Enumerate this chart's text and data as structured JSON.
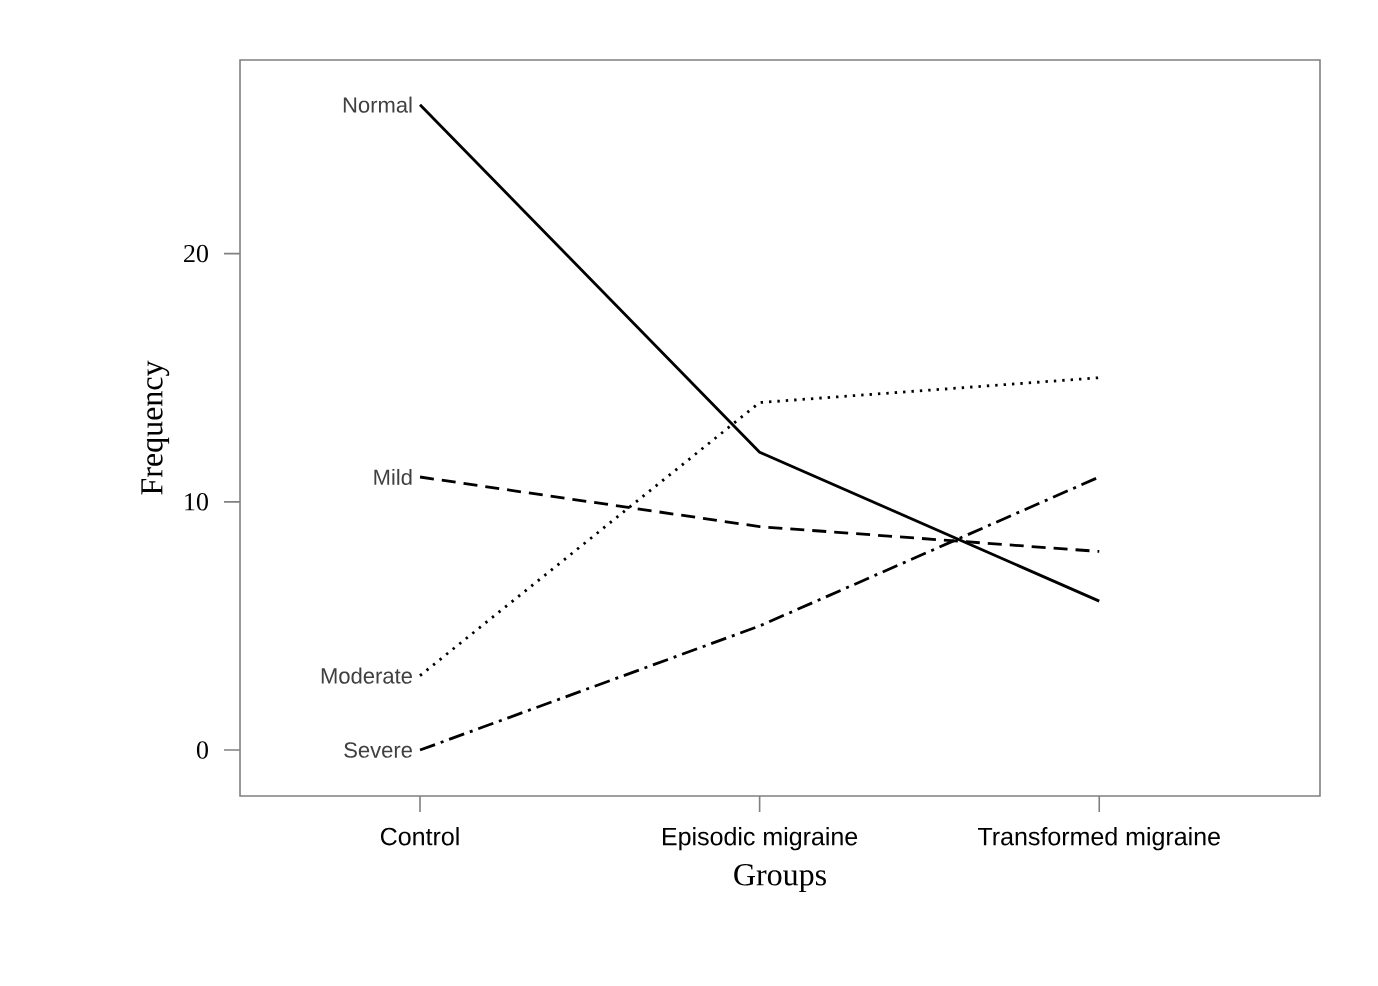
{
  "chart_data": {
    "type": "line",
    "xlabel": "Groups",
    "ylabel": "Frequency",
    "categories": [
      "Control",
      "Episodic migraine",
      "Transformed migraine"
    ],
    "series": [
      {
        "name": "Normal",
        "color": "#000000",
        "line_style": "solid",
        "values": [
          26,
          12,
          6
        ]
      },
      {
        "name": "Mild",
        "color": "#000000",
        "line_style": "dashed",
        "values": [
          11,
          9,
          8
        ]
      },
      {
        "name": "Moderate",
        "color": "#000000",
        "line_style": "dotted",
        "values": [
          3,
          14,
          15
        ]
      },
      {
        "name": "Severe",
        "color": "#000000",
        "line_style": "dashdot",
        "values": [
          0,
          5,
          11
        ]
      }
    ],
    "ylim": [
      -1.85,
      27.8
    ],
    "yticks": [
      0,
      10,
      20
    ],
    "grid": false,
    "legend": false,
    "marker": "none"
  }
}
